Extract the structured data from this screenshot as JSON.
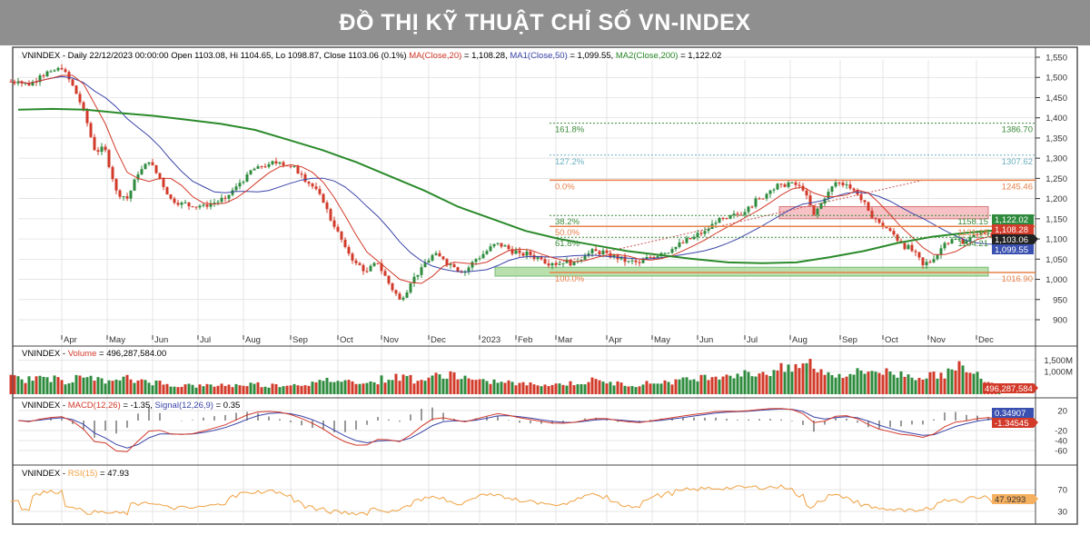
{
  "title": "ĐỒ THỊ KỸ THUẬT CHỈ SỐ VN-INDEX",
  "colors": {
    "up": "#2e8b3e",
    "down": "#d23a2a",
    "ma20": "#d23a2a",
    "ma50": "#3a44a8",
    "ma200": "#2a8a2a",
    "fib": "#e8804a",
    "rsi": "#f0a040",
    "grid": "#dcdcdc"
  },
  "price_header": {
    "prefix": "VNINDEX - Daily 22/12/2023 00:00:00 Open 1103.08, Hi 1104.65, Lo 1098.87, Close 1103.06 (0.1%) ",
    "ma20": "MA(Close,20)",
    "ma20_val": " = 1,108.28, ",
    "ma50": "MA1(Close,50)",
    "ma50_val": " = 1,099.55, ",
    "ma200": "MA2(Close,200)",
    "ma200_val": " = 1,122.02"
  },
  "volume_header": {
    "prefix": "VNINDEX - ",
    "name": "Volume",
    "value": " = 496,287,584.00"
  },
  "macd_header": {
    "prefix": "VNINDEX - ",
    "macd": "MACD(12,26)",
    "macd_val": " = -1.35, ",
    "signal": "Signal(12,26,9)",
    "signal_val": " = 0.35"
  },
  "rsi_header": {
    "prefix": "VNINDEX - ",
    "name": "RSI(15)",
    "value": " = 47.93"
  },
  "badges": {
    "ma200": "1,122.02",
    "ma20": "1,108.28",
    "close": "1,103.06",
    "ma50": "1,099.55",
    "volume": "496,287,584",
    "signal": "0.34907",
    "macd": "-1.34545",
    "rsi": "47.9293"
  },
  "chart_data": {
    "type": "candlestick",
    "title": "VNINDEX - Daily",
    "x_tick_labels": [
      "Apr",
      "May",
      "Jun",
      "Jul",
      "Aug",
      "Sep",
      "Oct",
      "Nov",
      "Dec",
      "2023",
      "Feb",
      "Mar",
      "Apr",
      "May",
      "Jun",
      "Jul",
      "Aug",
      "Sep",
      "Oct",
      "Nov",
      "Dec"
    ],
    "y_ticks": [
      "1,550",
      "1,500",
      "1,450",
      "1,400",
      "1,350",
      "1,300",
      "1,250",
      "1,200",
      "1,150",
      "1,100",
      "1,050",
      "1,000",
      "950",
      "900"
    ],
    "ylim": [
      880,
      1560
    ],
    "close": [
      1490,
      1480,
      1505,
      1515,
      1520,
      1480,
      1420,
      1320,
      1320,
      1220,
      1200,
      1260,
      1290,
      1250,
      1200,
      1190,
      1180,
      1185,
      1190,
      1200,
      1230,
      1260,
      1280,
      1285,
      1290,
      1280,
      1260,
      1230,
      1190,
      1130,
      1080,
      1040,
      1020,
      1040,
      990,
      950,
      990,
      1030,
      1060,
      1050,
      1030,
      1020,
      1050,
      1070,
      1090,
      1075,
      1065,
      1060,
      1050,
      1040,
      1040,
      1045,
      1060,
      1070,
      1065,
      1050,
      1045,
      1040,
      1055,
      1065,
      1075,
      1090,
      1105,
      1120,
      1140,
      1150,
      1160,
      1180,
      1200,
      1220,
      1235,
      1240,
      1220,
      1160,
      1200,
      1240,
      1235,
      1210,
      1170,
      1140,
      1120,
      1090,
      1070,
      1035,
      1050,
      1090,
      1100,
      1095,
      1110,
      1115,
      1103
    ],
    "ma200": [
      1420,
      1422,
      1420,
      1412,
      1405,
      1395,
      1385,
      1370,
      1345,
      1320,
      1290,
      1255,
      1220,
      1180,
      1150,
      1120,
      1100,
      1085,
      1070,
      1060,
      1050,
      1042,
      1040,
      1042,
      1055,
      1070,
      1090,
      1105,
      1115,
      1122
    ],
    "volume_millions": [
      700,
      650,
      760,
      620,
      820,
      560,
      700,
      780,
      620,
      540,
      690,
      580,
      640,
      520,
      430,
      380,
      400,
      360,
      380,
      420,
      390,
      420,
      450,
      380,
      400,
      420,
      440,
      470,
      520,
      620,
      600,
      560,
      580,
      520,
      680,
      740,
      760,
      620,
      680,
      820,
      900,
      760,
      620,
      540,
      560,
      520,
      480,
      440,
      460,
      420,
      440,
      480,
      520,
      600,
      560,
      480,
      440,
      420,
      480,
      520,
      560,
      600,
      680,
      740,
      820,
      860,
      900,
      880,
      920,
      980,
      1100,
      1050,
      1250,
      1350,
      1000,
      900,
      880,
      940,
      1000,
      1060,
      960,
      880,
      860,
      780,
      800,
      900,
      980,
      1200,
      860,
      700,
      496
    ],
    "volume_axis": [
      "1,500M",
      "1,000M"
    ],
    "macd_axis": [
      "20",
      "-20",
      "-40",
      "-60"
    ],
    "rsi_axis": [
      "70",
      "30"
    ],
    "fibonacci": [
      {
        "label": "161.8%",
        "value": "1386.70",
        "price": 1386.7
      },
      {
        "label": "127.2%",
        "value": "1307.62",
        "price": 1307.62
      },
      {
        "label": "0.0%",
        "value": "1245.46",
        "price": 1245.46
      },
      {
        "label": "38.2%",
        "value": "1158.15",
        "price": 1158.15
      },
      {
        "label": "50.0%",
        "value": "1131.18",
        "price": 1131.18
      },
      {
        "label": "61.8%",
        "value": "1104.21",
        "price": 1104.21
      },
      {
        "label": "100.0%",
        "value": "1016.90",
        "price": 1016.9
      }
    ],
    "resistance_zone": [
      1150,
      1180
    ],
    "support_zone": [
      1008,
      1030
    ]
  }
}
